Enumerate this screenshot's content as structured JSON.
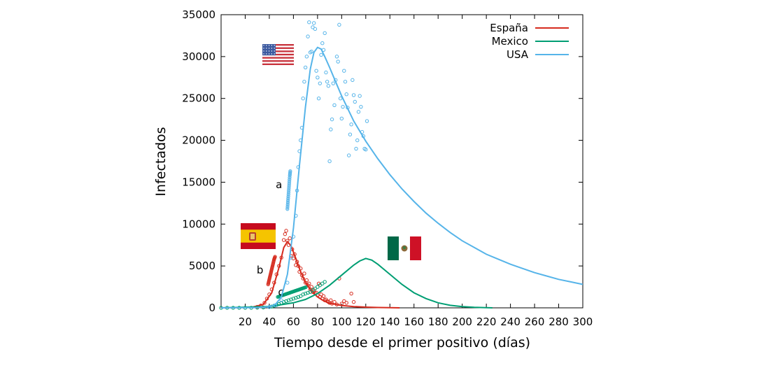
{
  "chart_data": {
    "type": "line",
    "xlabel": "Tiempo desde el primer positivo (días)",
    "ylabel": "Infectados",
    "xlim": [
      0,
      300
    ],
    "ylim": [
      0,
      35000
    ],
    "x_ticks": [
      20,
      40,
      60,
      80,
      100,
      120,
      140,
      160,
      180,
      200,
      220,
      240,
      260,
      280,
      300
    ],
    "y_ticks": [
      0,
      5000,
      10000,
      15000,
      20000,
      25000,
      30000,
      35000
    ],
    "grid": false,
    "legend_position": "top-right",
    "series": [
      {
        "name": "España",
        "color": "#d62b1e",
        "fit": [
          [
            0,
            0
          ],
          [
            25,
            50
          ],
          [
            35,
            400
          ],
          [
            42,
            1800
          ],
          [
            48,
            4800
          ],
          [
            52,
            7200
          ],
          [
            55,
            7900
          ],
          [
            58,
            7400
          ],
          [
            62,
            5900
          ],
          [
            66,
            4300
          ],
          [
            70,
            3000
          ],
          [
            75,
            2000
          ],
          [
            80,
            1300
          ],
          [
            85,
            850
          ],
          [
            90,
            550
          ],
          [
            100,
            280
          ],
          [
            110,
            150
          ],
          [
            120,
            80
          ],
          [
            130,
            40
          ],
          [
            140,
            15
          ],
          [
            148,
            0
          ]
        ],
        "points": [
          [
            30,
            120
          ],
          [
            33,
            280
          ],
          [
            36,
            600
          ],
          [
            38,
            1100
          ],
          [
            40,
            1600
          ],
          [
            42,
            2200
          ],
          [
            44,
            3000
          ],
          [
            46,
            4000
          ],
          [
            48,
            5000
          ],
          [
            50,
            6000
          ],
          [
            52,
            8100
          ],
          [
            53,
            8800
          ],
          [
            54,
            9200
          ],
          [
            55,
            8000
          ],
          [
            56,
            7500
          ],
          [
            57,
            8300
          ],
          [
            58,
            6200
          ],
          [
            59,
            7000
          ],
          [
            60,
            5900
          ],
          [
            61,
            6400
          ],
          [
            62,
            5100
          ],
          [
            63,
            5500
          ],
          [
            64,
            5000
          ],
          [
            65,
            4300
          ],
          [
            66,
            4700
          ],
          [
            67,
            3900
          ],
          [
            68,
            3500
          ],
          [
            69,
            4100
          ],
          [
            70,
            3000
          ],
          [
            71,
            3300
          ],
          [
            72,
            2700
          ],
          [
            73,
            2900
          ],
          [
            74,
            2200
          ],
          [
            75,
            2500
          ],
          [
            76,
            1900
          ],
          [
            77,
            2100
          ],
          [
            78,
            1700
          ],
          [
            79,
            1800
          ],
          [
            80,
            1500
          ],
          [
            81,
            2900
          ],
          [
            82,
            1300
          ],
          [
            83,
            1600
          ],
          [
            84,
            1100
          ],
          [
            85,
            1400
          ],
          [
            86,
            900
          ],
          [
            87,
            1000
          ],
          [
            88,
            800
          ],
          [
            89,
            700
          ],
          [
            90,
            600
          ],
          [
            91,
            900
          ],
          [
            92,
            500
          ],
          [
            94,
            700
          ],
          [
            96,
            400
          ],
          [
            98,
            3500
          ],
          [
            100,
            500
          ],
          [
            102,
            800
          ],
          [
            104,
            600
          ],
          [
            108,
            1700
          ],
          [
            110,
            700
          ]
        ],
        "annotation": {
          "label": "b",
          "points": [
            [
              39,
              2800
            ],
            [
              40,
              3400
            ],
            [
              41,
              4000
            ],
            [
              42,
              4600
            ],
            [
              43,
              5200
            ],
            [
              44,
              5800
            ],
            [
              45,
              6200
            ]
          ]
        }
      },
      {
        "name": "Mexico",
        "color": "#009e73",
        "fit": [
          [
            0,
            0
          ],
          [
            40,
            150
          ],
          [
            60,
            600
          ],
          [
            70,
            1000
          ],
          [
            80,
            1700
          ],
          [
            90,
            2700
          ],
          [
            100,
            3900
          ],
          [
            110,
            5100
          ],
          [
            115,
            5600
          ],
          [
            120,
            5900
          ],
          [
            125,
            5700
          ],
          [
            130,
            5200
          ],
          [
            140,
            4000
          ],
          [
            150,
            2800
          ],
          [
            160,
            1800
          ],
          [
            170,
            1100
          ],
          [
            180,
            600
          ],
          [
            190,
            300
          ],
          [
            200,
            150
          ],
          [
            210,
            60
          ],
          [
            225,
            0
          ]
        ],
        "points": [
          [
            0,
            0
          ],
          [
            5,
            0
          ],
          [
            10,
            0
          ],
          [
            15,
            0
          ],
          [
            20,
            0
          ],
          [
            25,
            0
          ],
          [
            30,
            20
          ],
          [
            35,
            40
          ],
          [
            40,
            100
          ],
          [
            42,
            150
          ],
          [
            44,
            250
          ],
          [
            46,
            350
          ],
          [
            48,
            450
          ],
          [
            50,
            600
          ],
          [
            52,
            700
          ],
          [
            54,
            800
          ],
          [
            56,
            900
          ],
          [
            58,
            1000
          ],
          [
            60,
            1100
          ],
          [
            62,
            1200
          ],
          [
            64,
            1300
          ],
          [
            66,
            1400
          ],
          [
            68,
            1600
          ],
          [
            70,
            1700
          ],
          [
            72,
            1800
          ],
          [
            74,
            1900
          ],
          [
            76,
            2100
          ],
          [
            78,
            2300
          ],
          [
            80,
            2500
          ],
          [
            82,
            2700
          ],
          [
            84,
            2900
          ],
          [
            86,
            3100
          ]
        ],
        "annotation": {
          "label": "c",
          "points": [
            [
              47,
              1300
            ],
            [
              50,
              1450
            ],
            [
              53,
              1600
            ],
            [
              56,
              1750
            ],
            [
              59,
              1900
            ],
            [
              62,
              2050
            ],
            [
              65,
              2200
            ],
            [
              68,
              2350
            ],
            [
              71,
              2500
            ]
          ]
        }
      },
      {
        "name": "USA",
        "color": "#56b4e9",
        "fit": [
          [
            0,
            0
          ],
          [
            30,
            30
          ],
          [
            40,
            120
          ],
          [
            45,
            400
          ],
          [
            50,
            1300
          ],
          [
            55,
            4000
          ],
          [
            60,
            9500
          ],
          [
            65,
            17000
          ],
          [
            70,
            24000
          ],
          [
            74,
            28500
          ],
          [
            77,
            30500
          ],
          [
            80,
            31100
          ],
          [
            83,
            30900
          ],
          [
            86,
            30000
          ],
          [
            90,
            28700
          ],
          [
            95,
            27000
          ],
          [
            100,
            25300
          ],
          [
            110,
            22300
          ],
          [
            120,
            19900
          ],
          [
            130,
            17800
          ],
          [
            140,
            15900
          ],
          [
            150,
            14200
          ],
          [
            160,
            12700
          ],
          [
            170,
            11300
          ],
          [
            180,
            10100
          ],
          [
            190,
            9000
          ],
          [
            200,
            8000
          ],
          [
            210,
            7200
          ],
          [
            220,
            6400
          ],
          [
            230,
            5800
          ],
          [
            240,
            5200
          ],
          [
            250,
            4700
          ],
          [
            260,
            4200
          ],
          [
            270,
            3800
          ],
          [
            280,
            3400
          ],
          [
            290,
            3100
          ],
          [
            300,
            2800
          ]
        ],
        "points": [
          [
            40,
            100
          ],
          [
            45,
            300
          ],
          [
            50,
            900
          ],
          [
            55,
            3000
          ],
          [
            58,
            6000
          ],
          [
            60,
            8500
          ],
          [
            62,
            11000
          ],
          [
            63,
            14000
          ],
          [
            64,
            16800
          ],
          [
            65,
            18700
          ],
          [
            66,
            20000
          ],
          [
            67,
            21500
          ],
          [
            68,
            25000
          ],
          [
            69,
            27000
          ],
          [
            70,
            28700
          ],
          [
            71,
            30000
          ],
          [
            72,
            32400
          ],
          [
            73,
            34100
          ],
          [
            74,
            30500
          ],
          [
            75,
            30600
          ],
          [
            76,
            33500
          ],
          [
            77,
            34000
          ],
          [
            78,
            33300
          ],
          [
            79,
            28300
          ],
          [
            80,
            27500
          ],
          [
            81,
            25000
          ],
          [
            82,
            26800
          ],
          [
            83,
            30200
          ],
          [
            84,
            31600
          ],
          [
            85,
            30800
          ],
          [
            86,
            32800
          ],
          [
            87,
            28100
          ],
          [
            88,
            27000
          ],
          [
            89,
            26500
          ],
          [
            90,
            17500
          ],
          [
            91,
            21300
          ],
          [
            92,
            22500
          ],
          [
            93,
            26800
          ],
          [
            94,
            24200
          ],
          [
            95,
            27200
          ],
          [
            96,
            30000
          ],
          [
            97,
            29400
          ],
          [
            98,
            33800
          ],
          [
            99,
            25000
          ],
          [
            100,
            22600
          ],
          [
            101,
            24000
          ],
          [
            102,
            28300
          ],
          [
            103,
            27000
          ],
          [
            104,
            25500
          ],
          [
            105,
            23900
          ],
          [
            106,
            18200
          ],
          [
            107,
            20700
          ],
          [
            108,
            21900
          ],
          [
            109,
            27200
          ],
          [
            110,
            25400
          ],
          [
            111,
            24600
          ],
          [
            112,
            19000
          ],
          [
            113,
            20000
          ],
          [
            114,
            23400
          ],
          [
            115,
            25300
          ],
          [
            116,
            24000
          ],
          [
            117,
            21000
          ],
          [
            118,
            20500
          ],
          [
            119,
            19000
          ],
          [
            120,
            18900
          ],
          [
            121,
            22300
          ]
        ],
        "annotation": {
          "label": "a",
          "points": [
            [
              55,
              11800
            ],
            [
              55.5,
              12800
            ],
            [
              56,
              13800
            ],
            [
              56.5,
              14800
            ],
            [
              57,
              15800
            ],
            [
              57.5,
              16500
            ]
          ]
        }
      }
    ]
  }
}
